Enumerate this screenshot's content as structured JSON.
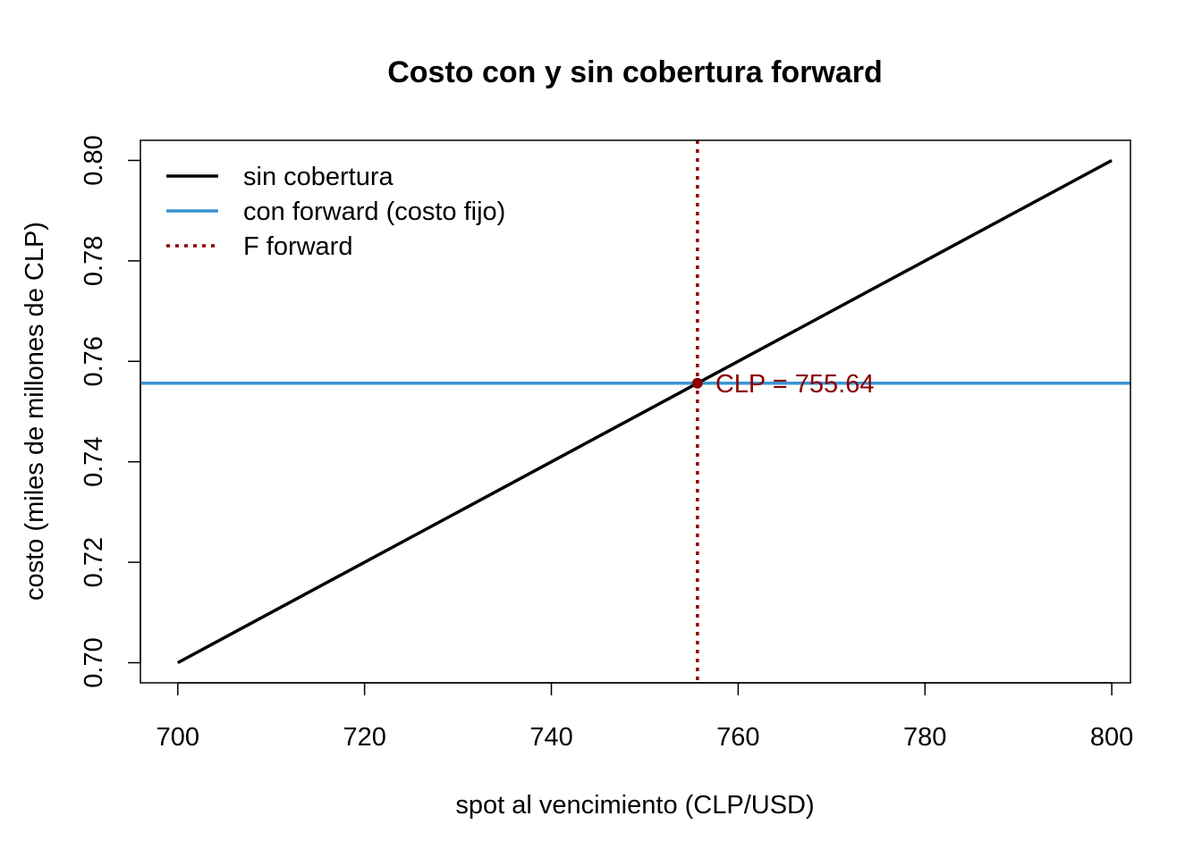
{
  "chart_data": {
    "type": "line",
    "title": "Costo con y sin cobertura forward",
    "xlabel": "spot al vencimiento (CLP/USD)",
    "ylabel": "costo (miles de millones de CLP)",
    "xlim": [
      696,
      802
    ],
    "ylim": [
      0.696,
      0.804
    ],
    "xticks": [
      700,
      720,
      740,
      760,
      780,
      800
    ],
    "yticks": [
      "0.70",
      "0.72",
      "0.74",
      "0.76",
      "0.78",
      "0.80"
    ],
    "grid": false,
    "legend_position": "top-left",
    "series": [
      {
        "name": "sin cobertura",
        "style": "solid",
        "color": "#000000",
        "x": [
          700,
          800
        ],
        "y": [
          0.7,
          0.8
        ]
      },
      {
        "name": "con forward (costo fijo)",
        "style": "solid-hline",
        "color": "#3a94d4",
        "y": 0.75564
      },
      {
        "name": "F forward",
        "style": "dotted-vline",
        "color": "#8b0000",
        "x": 755.64
      }
    ],
    "point": {
      "x": 755.64,
      "y": 0.75564,
      "color": "#8b0000"
    },
    "annotation": {
      "text": "CLP = 755.64",
      "x": 755.64,
      "y": 0.75564,
      "color": "#8b0000"
    }
  }
}
